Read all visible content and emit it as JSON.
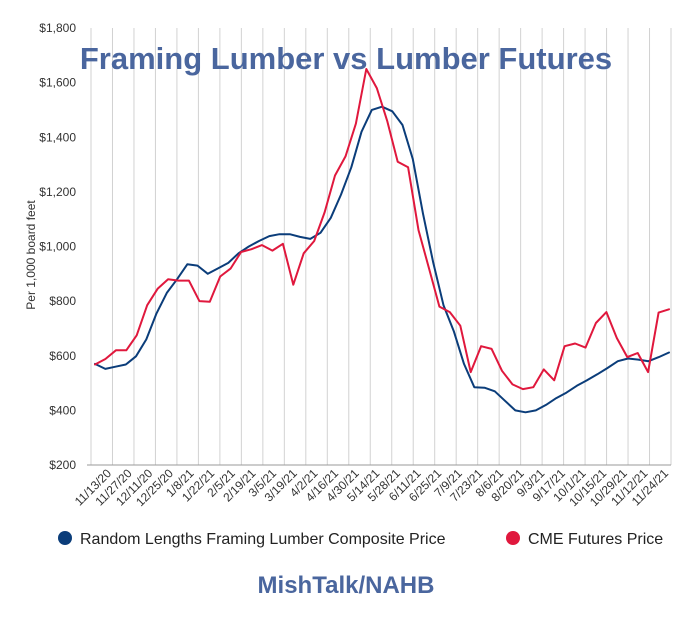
{
  "chart_data": {
    "type": "line",
    "title": "Framing Lumber vs Lumber Futures",
    "ylabel": "Per 1,000 board feet",
    "xlabel": "",
    "ylim": [
      200,
      1800
    ],
    "y_ticks": [
      200,
      400,
      600,
      800,
      1000,
      1200,
      1400,
      1600,
      1800
    ],
    "y_tick_labels": [
      "$200",
      "$400",
      "$600",
      "$800",
      "$1,000",
      "$1,200",
      "$1,400",
      "$1,600",
      "$1,800"
    ],
    "grid": "vertical",
    "legend_placement": "bottom",
    "x_tick_labels": [
      "11/13/20",
      "11/27/20",
      "12/11/20",
      "12/25/20",
      "1/8/21",
      "1/22/21",
      "2/5/21",
      "2/19/21",
      "3/5/21",
      "3/19/21",
      "4/2/21",
      "4/16/21",
      "4/30/21",
      "5/14/21",
      "5/28/21",
      "6/11/21",
      "6/25/21",
      "7/9/21",
      "7/23/21",
      "8/6/21",
      "8/20/21",
      "9/3/21",
      "9/17/21",
      "10/1/21",
      "10/15/21",
      "10/29/21",
      "11/12/21",
      "11/24/21"
    ],
    "series": [
      {
        "name": "Random Lengths Framing Lumber Composite Price",
        "color": "#0b3d7a",
        "values": [
          570,
          552,
          560,
          568,
          598,
          660,
          755,
          830,
          880,
          935,
          930,
          900,
          920,
          940,
          975,
          1000,
          1020,
          1038,
          1045,
          1045,
          1035,
          1028,
          1050,
          1105,
          1190,
          1290,
          1420,
          1500,
          1512,
          1495,
          1445,
          1320,
          1120,
          940,
          785,
          690,
          570,
          485,
          483,
          470,
          435,
          400,
          393,
          400,
          420,
          445,
          465,
          490,
          510,
          532,
          555,
          580,
          590,
          586,
          580,
          595,
          612
        ]
      },
      {
        "name": "CME Futures Price",
        "color": "#e0183d",
        "values": [
          568,
          588,
          620,
          620,
          675,
          785,
          845,
          880,
          875,
          875,
          800,
          798,
          890,
          920,
          980,
          990,
          1005,
          985,
          1010,
          860,
          975,
          1020,
          1125,
          1260,
          1330,
          1450,
          1650,
          1580,
          1460,
          1310,
          1290,
          1060,
          920,
          780,
          760,
          710,
          540,
          635,
          625,
          545,
          495,
          478,
          485,
          550,
          510,
          635,
          645,
          630,
          720,
          760,
          665,
          595,
          610,
          540,
          758,
          770
        ]
      }
    ]
  },
  "legend": {
    "items": [
      {
        "label": "Random Lengths Framing Lumber Composite Price",
        "color": "#0b3d7a"
      },
      {
        "label": "CME Futures Price",
        "color": "#e0183d"
      }
    ]
  },
  "source_label": "MishTalk/NAHB"
}
